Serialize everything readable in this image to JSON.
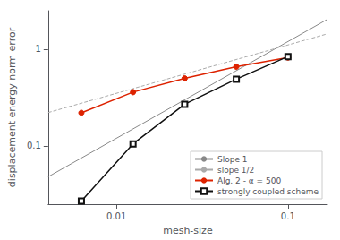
{
  "chart_data": {
    "type": "line",
    "xlabel": "mesh-size",
    "ylabel": "displacement energy norm error",
    "log": true,
    "xlim": [
      0.004,
      0.17
    ],
    "ylim": [
      0.025,
      2.5
    ],
    "xticks": [
      0.01,
      0.1
    ],
    "yticks": [
      0.1,
      1
    ],
    "grid": false,
    "legend": "lower right",
    "series": [
      {
        "name": "Slope 1",
        "color": "#888888",
        "marker": "none",
        "line_style": "solid",
        "x": [
          0.004,
          0.17
        ],
        "values": [
          0.048,
          2.04
        ]
      },
      {
        "name": "slope 1/2",
        "color": "#aaaaaa",
        "marker": "none",
        "line_style": "dashed",
        "x": [
          0.004,
          0.17
        ],
        "values": [
          0.22135943621178655,
          1.4430869689661812
        ]
      },
      {
        "name": "Alg. 2 - α = 500",
        "color": "#dd2200",
        "marker": "circle",
        "line_style": "solid",
        "x": [
          0.00625,
          0.0125,
          0.025,
          0.05,
          0.1
        ],
        "values": [
          0.22,
          0.36,
          0.5,
          0.66,
          0.82
        ]
      },
      {
        "name": "strongly coupled scheme",
        "color": "#111111",
        "marker": "square",
        "line_style": "solid",
        "x": [
          0.00625,
          0.0125,
          0.025,
          0.05,
          0.1
        ],
        "values": [
          0.027,
          0.105,
          0.27,
          0.49,
          0.84
        ]
      }
    ]
  }
}
